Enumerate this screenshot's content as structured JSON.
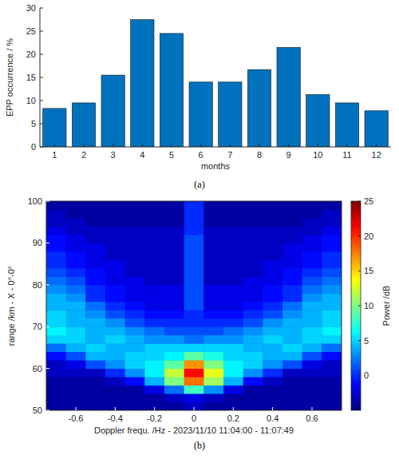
{
  "chart_data": [
    {
      "type": "bar",
      "caption": "(a)",
      "xlabel": "months",
      "ylabel": "EPP occurrence / %",
      "categories": [
        "1",
        "2",
        "3",
        "4",
        "5",
        "6",
        "7",
        "8",
        "9",
        "10",
        "11",
        "12"
      ],
      "values": [
        8.3,
        9.5,
        15.5,
        27.5,
        24.5,
        14,
        14,
        16.7,
        21.5,
        11.3,
        9.5,
        7.8
      ],
      "color": "#0072bd",
      "ylim": [
        0,
        30
      ],
      "yticks": [
        0,
        5,
        10,
        15,
        20,
        25,
        30
      ],
      "grid": false
    },
    {
      "type": "heatmap",
      "caption": "(b)",
      "xlabel": "Doppler frequ. /Hz - 2023/11/10 11:04:00 - 11:07:49",
      "ylabel": "range /km - X - 0°-0°",
      "x": [
        -0.7,
        -0.6,
        -0.5,
        -0.4,
        -0.3,
        -0.2,
        -0.1,
        0,
        0.1,
        0.2,
        0.3,
        0.4,
        0.5,
        0.6,
        0.7
      ],
      "y": [
        51,
        53,
        55,
        57,
        59,
        61,
        63,
        65,
        67,
        69,
        71,
        73,
        75,
        77,
        79,
        81,
        83,
        85,
        87,
        89,
        91,
        93,
        95,
        97,
        99
      ],
      "values": [
        [
          -4,
          -4,
          -4,
          -4,
          -4,
          -4,
          -4,
          -3,
          -4,
          -4,
          -4,
          -4,
          -4,
          -4,
          -4
        ],
        [
          -4,
          -4,
          -4,
          -4,
          -4,
          -4,
          -3,
          -2,
          -3,
          -4,
          -4,
          -4,
          -4,
          -4,
          -4
        ],
        [
          -4,
          -4,
          -4,
          -4,
          -4,
          -2,
          2,
          8,
          3,
          -2,
          -4,
          -4,
          -4,
          -4,
          -4
        ],
        [
          -4,
          -4,
          -4,
          -3,
          -1,
          4,
          10,
          18,
          11,
          4,
          -1,
          -3,
          -4,
          -4,
          -4
        ],
        [
          -3,
          -3,
          -3,
          0,
          3,
          6,
          12,
          21,
          13,
          6,
          3,
          0,
          -3,
          -3,
          -3
        ],
        [
          -3,
          -2,
          1,
          3,
          5,
          6,
          9,
          17,
          10,
          6,
          5,
          3,
          1,
          -2,
          -3
        ],
        [
          -1,
          1,
          4,
          4,
          5,
          5,
          6,
          9,
          7,
          5,
          5,
          4,
          4,
          1,
          -1
        ],
        [
          2,
          4,
          5,
          4,
          4,
          5,
          5,
          5,
          5,
          5,
          4,
          4,
          5,
          4,
          2
        ],
        [
          5,
          5,
          4,
          5,
          4,
          3,
          3,
          2,
          3,
          3,
          4,
          5,
          4,
          5,
          5
        ],
        [
          6,
          5,
          4,
          4,
          3,
          2,
          1,
          1,
          1,
          2,
          3,
          4,
          4,
          5,
          6
        ],
        [
          5,
          4,
          4,
          3,
          1,
          0,
          0,
          0,
          0,
          0,
          1,
          3,
          4,
          4,
          5
        ],
        [
          5,
          4,
          3,
          1,
          0,
          -1,
          -1,
          0,
          -1,
          -1,
          0,
          1,
          3,
          4,
          5
        ],
        [
          4,
          4,
          2,
          0,
          -1,
          -2,
          -2,
          1,
          -2,
          -2,
          -1,
          0,
          2,
          4,
          4
        ],
        [
          4,
          3,
          0,
          -1,
          -2,
          -2,
          -2,
          1,
          -2,
          -2,
          -2,
          -1,
          0,
          3,
          4
        ],
        [
          3,
          2,
          0,
          -1,
          -2,
          -2,
          -2,
          1,
          -2,
          -2,
          -2,
          -1,
          0,
          2,
          3
        ],
        [
          2,
          1,
          -1,
          -2,
          -2,
          -3,
          -3,
          1,
          -3,
          -3,
          -2,
          -2,
          -1,
          1,
          2
        ],
        [
          1,
          0,
          -1,
          -2,
          -3,
          -3,
          -3,
          1,
          -3,
          -3,
          -3,
          -2,
          -1,
          0,
          1
        ],
        [
          0,
          -1,
          -2,
          -2,
          -3,
          -3,
          -3,
          1,
          -3,
          -3,
          -3,
          -2,
          -2,
          -1,
          0
        ],
        [
          0,
          -1,
          -2,
          -3,
          -3,
          -3,
          -3,
          1,
          -3,
          -3,
          -3,
          -3,
          -2,
          -1,
          0
        ],
        [
          -1,
          -2,
          -2,
          -3,
          -3,
          -3,
          -3,
          1,
          -3,
          -3,
          -3,
          -3,
          -2,
          -2,
          -1
        ],
        [
          -1,
          -2,
          -3,
          -3,
          -3,
          -3,
          -3,
          1,
          -3,
          -3,
          -3,
          -3,
          -3,
          -2,
          -1
        ],
        [
          -2,
          -3,
          -3,
          -3,
          -3,
          -3,
          -3,
          0,
          -3,
          -3,
          -3,
          -3,
          -3,
          -3,
          -2
        ],
        [
          -3,
          -3,
          -4,
          -4,
          -4,
          -4,
          -4,
          0,
          -4,
          -4,
          -4,
          -4,
          -4,
          -3,
          -3
        ],
        [
          -3,
          -4,
          -4,
          -4,
          -4,
          -4,
          -4,
          0,
          -4,
          -4,
          -4,
          -4,
          -4,
          -4,
          -3
        ],
        [
          -4,
          -4,
          -4,
          -4,
          -4,
          -4,
          -4,
          0,
          -4,
          -4,
          -4,
          -4,
          -4,
          -4,
          -4
        ]
      ],
      "xlim": [
        -0.75,
        0.75
      ],
      "xticks": [
        -0.6,
        -0.4,
        -0.2,
        0,
        0.2,
        0.4,
        0.6
      ],
      "ylim": [
        50,
        100
      ],
      "yticks": [
        50,
        60,
        70,
        80,
        90,
        100
      ],
      "colorbar": {
        "label": "Power /dB",
        "lim": [
          -5,
          25
        ],
        "ticks": [
          0,
          5,
          10,
          15,
          20,
          25
        ]
      }
    }
  ]
}
